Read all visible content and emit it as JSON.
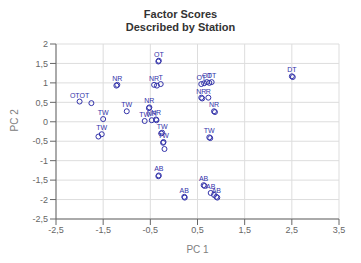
{
  "chart_data": {
    "type": "scatter",
    "title": "Factor Scores\nDescribed by Station",
    "x_label": "PC 1",
    "y_label": "PC 2",
    "color": "#3333aa",
    "grid": true,
    "xlim": [
      -2.5,
      3.5
    ],
    "ylim": [
      -2.5,
      2.0
    ],
    "xticks": [
      {
        "value": -2.5,
        "label": "-2,5"
      },
      {
        "value": -1.5,
        "label": "-1,5"
      },
      {
        "value": -0.5,
        "label": "-0,5"
      },
      {
        "value": 0.5,
        "label": "0,5"
      },
      {
        "value": 1.5,
        "label": "1,5"
      },
      {
        "value": 2.5,
        "label": "2,5"
      },
      {
        "value": 3.5,
        "label": "3,5"
      }
    ],
    "yticks": [
      {
        "value": -2.5,
        "label": "-2,5"
      },
      -2,
      {
        "value": -1.5,
        "label": "-1,5"
      },
      -1,
      {
        "value": -0.5,
        "label": "-0,5"
      },
      0,
      {
        "value": 0.5,
        "label": "0,5"
      },
      1,
      {
        "value": 1.5,
        "label": "1,5"
      },
      2
    ],
    "x": [
      -2.0,
      -1.75,
      -1.5,
      -1.53,
      -1.6,
      -1.0,
      -1.2,
      -1.22,
      -0.32,
      -0.33,
      -0.42,
      -0.28,
      -0.36,
      -0.52,
      -0.53,
      -0.62,
      -0.47,
      -0.38,
      -0.37,
      -0.25,
      -0.27,
      -0.22,
      -0.23,
      -0.2,
      -0.32,
      -0.33,
      0.22,
      0.23,
      0.58,
      0.64,
      0.7,
      0.75,
      0.8,
      0.58,
      0.6,
      0.73,
      0.85,
      0.87,
      0.75,
      0.77,
      0.63,
      0.65,
      0.78,
      0.85,
      0.9,
      0.92,
      2.5,
      2.52
    ],
    "values": [
      0.52,
      0.48,
      0.07,
      -0.32,
      -0.38,
      0.27,
      0.95,
      0.93,
      1.57,
      1.55,
      0.95,
      0.97,
      0.93,
      0.37,
      0.35,
      0.02,
      0.04,
      0.06,
      0.04,
      -0.28,
      -0.3,
      -0.52,
      -0.54,
      -0.7,
      -1.38,
      -1.4,
      -1.93,
      -1.95,
      0.97,
      0.99,
      1.02,
      1.0,
      1.02,
      0.62,
      0.6,
      0.62,
      0.27,
      0.25,
      -0.4,
      -0.42,
      -1.63,
      -1.65,
      -1.83,
      -1.88,
      -1.93,
      -1.95,
      1.17,
      1.15
    ],
    "labels": [
      "OTOT",
      null,
      "TW",
      "TW",
      null,
      "TW",
      "NR",
      null,
      "OT",
      null,
      "NR",
      "T",
      null,
      "NR",
      null,
      "TW",
      "NR",
      "NR",
      null,
      "TW",
      null,
      "TW",
      null,
      null,
      "AB",
      null,
      "AB",
      null,
      "OT",
      null,
      "OT",
      null,
      "DT",
      "NR",
      null,
      "R",
      "NR",
      null,
      "TW",
      null,
      "AB",
      null,
      "AB",
      null,
      "AB",
      null,
      "DT",
      null
    ]
  }
}
